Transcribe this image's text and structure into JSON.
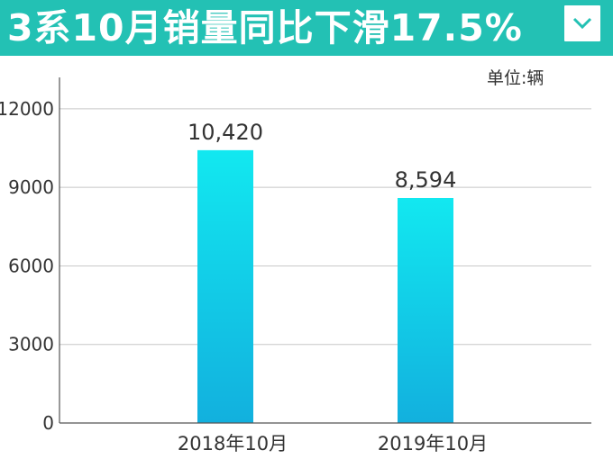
{
  "header": {
    "title": "3系10月销量同比下滑17.5%",
    "bg_color": "#23c1b4",
    "toggle_icon": "chevron-down-icon"
  },
  "unit_label": "单位:辆",
  "chart_data": {
    "type": "bar",
    "categories": [
      "2018年10月",
      "2019年10月"
    ],
    "values": [
      10420,
      8594
    ],
    "data_labels": [
      "10,420",
      "8,594"
    ],
    "y_ticks": [
      "0",
      "3000",
      "6000",
      "9000",
      "12000"
    ],
    "ylim": [
      0,
      13200
    ],
    "grid": true,
    "bar_color_top": "#12e8f0",
    "bar_color_bottom": "#12b0de"
  }
}
